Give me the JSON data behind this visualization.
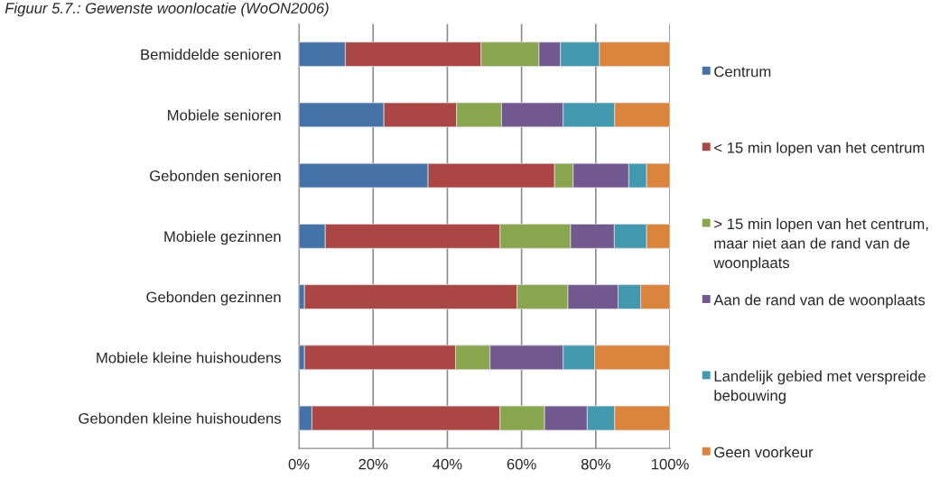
{
  "chart_data": {
    "type": "bar",
    "orientation": "horizontal",
    "stacked": true,
    "title": "Figuur 5.7.: Gewenste woonlocatie (WoON2006)",
    "categories": [
      "Bemiddelde senioren",
      "Mobiele senioren",
      "Gebonden senioren",
      "Mobiele gezinnen",
      "Gebonden gezinnen",
      "Mobiele kleine huishoudens",
      "Gebonden kleine huishoudens"
    ],
    "series": [
      {
        "name": "Centrum",
        "color": "#4572a7",
        "values": [
          12.5,
          22.9,
          34.8,
          7.1,
          1.5,
          1.5,
          3.5
        ]
      },
      {
        "name": "< 15 min lopen van het centrum",
        "color": "#aa4643",
        "values": [
          36.6,
          19.6,
          34.1,
          47.1,
          57.3,
          40.7,
          50.7
        ]
      },
      {
        "name": "> 15 min lopen van het centrum, maar niet aan de rand van de woonplaats",
        "color": "#89a54e",
        "values": [
          15.6,
          12.1,
          5.0,
          19.0,
          13.7,
          9.3,
          12.0
        ]
      },
      {
        "name": "Aan de rand van de woonplaats",
        "color": "#71588f",
        "values": [
          5.8,
          16.6,
          15.0,
          11.8,
          13.5,
          19.7,
          11.5
        ]
      },
      {
        "name": "Landelijk gebied met verspreide bebouwing",
        "color": "#4198af",
        "values": [
          10.5,
          13.9,
          4.8,
          8.7,
          6.1,
          8.5,
          7.4
        ]
      },
      {
        "name": "Geen voorkeur",
        "color": "#db843d",
        "values": [
          19.0,
          14.9,
          6.3,
          6.3,
          7.9,
          20.3,
          14.9
        ]
      }
    ],
    "xlim": [
      0,
      100
    ],
    "xticks": [
      {
        "value": 0,
        "label": "0%"
      },
      {
        "value": 20,
        "label": "20%"
      },
      {
        "value": 40,
        "label": "40%"
      },
      {
        "value": 60,
        "label": "60%"
      },
      {
        "value": 80,
        "label": "80%"
      },
      {
        "value": 100,
        "label": "100%"
      }
    ],
    "grid": "x",
    "legend": "right"
  }
}
